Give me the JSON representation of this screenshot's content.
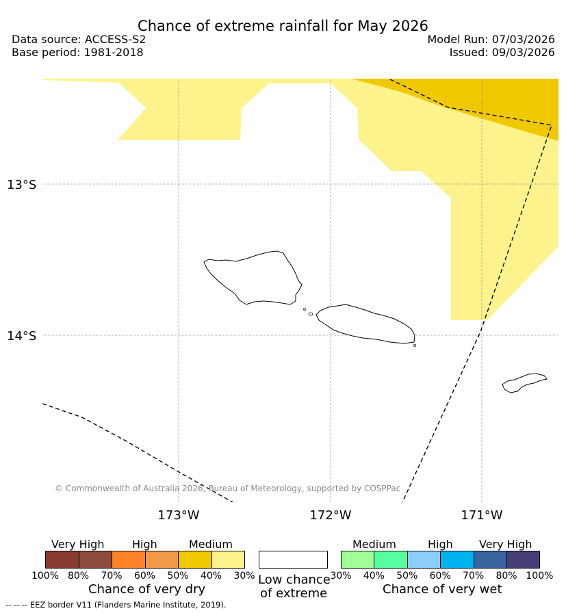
{
  "title": "Chance of extreme rainfall for May 2026",
  "data_source": "Data source: ACCESS-S2",
  "base_period": "Base period: 1981-2018",
  "model_run": "Model Run: 07/03/2026",
  "issued": "Issued: 09/03/2026",
  "map": {
    "lat_labels": [
      "13°S",
      "14°S"
    ],
    "lon_labels": [
      "173°W",
      "172°W",
      "171°W"
    ],
    "copyright": "© Commonwealth of Australia 2026, Bureau of Meteorology, supported by COSPPac",
    "colors": {
      "medium_dry": "#f0c800",
      "lowish_dry": "#fcf38d",
      "land_outline": "#000000",
      "gridline": "#888888"
    }
  },
  "legend": {
    "dry": {
      "headers": [
        "Very High",
        "High",
        "Medium"
      ],
      "ticks": [
        "100%",
        "80%",
        "70%",
        "60%",
        "50%",
        "40%",
        "30%"
      ],
      "colors": [
        "#8b3a33",
        "#8e4c3c",
        "#ff8228",
        "#f09a48",
        "#f0c800",
        "#fcf38d"
      ],
      "caption": "Chance of very dry"
    },
    "neutral": {
      "line1": "Low chance",
      "line2": "of extreme"
    },
    "wet": {
      "headers": [
        "Medium",
        "High",
        "Very High"
      ],
      "ticks": [
        "30%",
        "40%",
        "50%",
        "60%",
        "70%",
        "80%",
        "100%"
      ],
      "colors": [
        "#a0ff96",
        "#55ffa0",
        "#8ccdfa",
        "#00b4ef",
        "#3a64a0",
        "#463c78"
      ],
      "caption": "Chance of very wet"
    }
  },
  "footnote": "--  --  -- EEZ border V11 (Flanders Marine Institute, 2019)."
}
